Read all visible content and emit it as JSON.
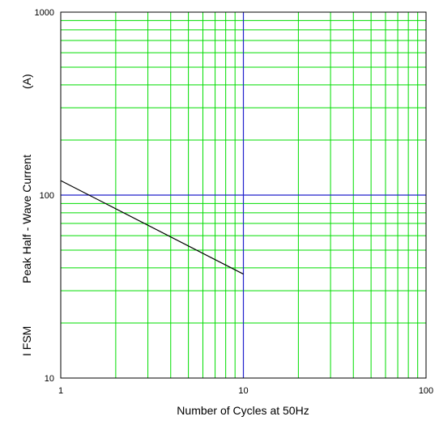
{
  "chart_data": {
    "type": "line",
    "title": "",
    "xlabel": "Number of Cycles at 50Hz",
    "ylabel_parts": [
      "I  FSM",
      "Peak Half - Wave Current",
      "(A)"
    ],
    "x_scale": "log",
    "y_scale": "log",
    "xlim": [
      1,
      100
    ],
    "ylim": [
      10,
      1000
    ],
    "x_ticks": [
      1,
      10,
      100
    ],
    "y_ticks": [
      10,
      100,
      1000
    ],
    "x_tick_labels": [
      "1",
      "10",
      "100"
    ],
    "y_tick_labels": [
      "10",
      "100",
      "1000"
    ],
    "grid": true,
    "colors": {
      "minor_grid": "#00dd00",
      "major_grid": "#2222cc",
      "frame": "#000000",
      "series": "#000000"
    },
    "series": [
      {
        "x": [
          1,
          10
        ],
        "y": [
          120,
          37
        ]
      }
    ]
  }
}
